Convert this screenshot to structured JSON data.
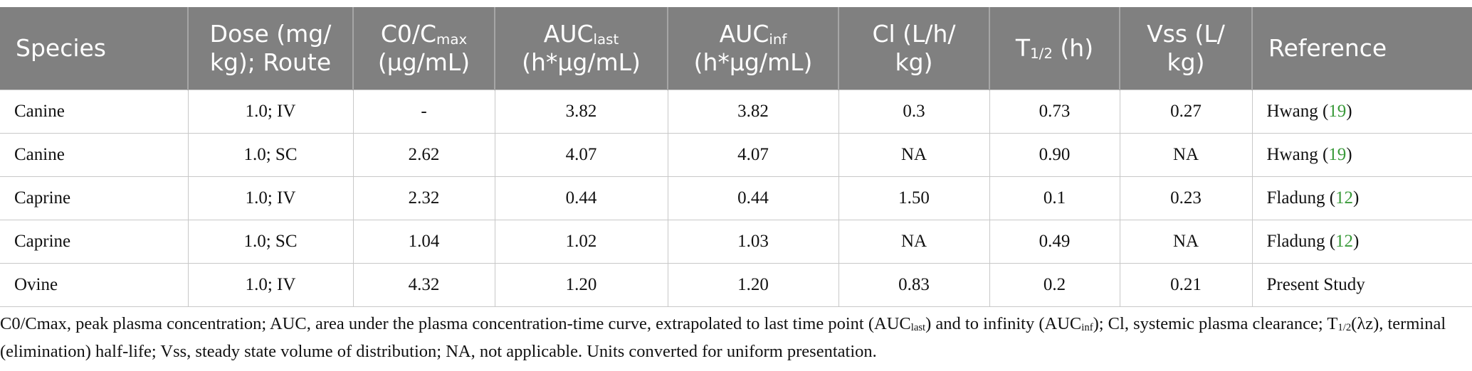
{
  "table": {
    "header": [
      [
        {
          "text": "Species"
        }
      ],
      [
        {
          "text": "Dose (mg/ kg); Route"
        }
      ],
      [
        {
          "text": "C0/C"
        },
        {
          "sub": "max"
        },
        {
          "text": " (μg/mL)"
        }
      ],
      [
        {
          "text": "AUC"
        },
        {
          "sub": "last"
        },
        {
          "text": " (h*μg/mL)"
        }
      ],
      [
        {
          "text": "AUC"
        },
        {
          "sub": "inf"
        },
        {
          "text": " (h*μg/mL)"
        }
      ],
      [
        {
          "text": "Cl (L/h/ kg)"
        }
      ],
      [
        {
          "text": "T"
        },
        {
          "sub": "1/2"
        },
        {
          "text": " (h)"
        }
      ],
      [
        {
          "text": "Vss (L/ kg)"
        }
      ],
      [
        {
          "text": "Reference"
        }
      ]
    ],
    "rows": [
      [
        "Canine",
        "1.0; IV",
        "-",
        "3.82",
        "3.82",
        "0.3",
        "0.73",
        "0.27",
        [
          {
            "text": "Hwang ("
          },
          {
            "ref": "19"
          },
          {
            "text": ")"
          }
        ]
      ],
      [
        "Canine",
        "1.0; SC",
        "2.62",
        "4.07",
        "4.07",
        "NA",
        "0.90",
        "NA",
        [
          {
            "text": "Hwang ("
          },
          {
            "ref": "19"
          },
          {
            "text": ")"
          }
        ]
      ],
      [
        "Caprine",
        "1.0; IV",
        "2.32",
        "0.44",
        "0.44",
        "1.50",
        "0.1",
        "0.23",
        [
          {
            "text": "Fladung ("
          },
          {
            "ref": "12"
          },
          {
            "text": ")"
          }
        ]
      ],
      [
        "Caprine",
        "1.0; SC",
        "1.04",
        "1.02",
        "1.03",
        "NA",
        "0.49",
        "NA",
        [
          {
            "text": "Fladung ("
          },
          {
            "ref": "12"
          },
          {
            "text": ")"
          }
        ]
      ],
      [
        "Ovine",
        "1.0; IV",
        "4.32",
        "1.20",
        "1.20",
        "0.83",
        "0.2",
        "0.21",
        [
          {
            "text": "Present Study"
          }
        ]
      ]
    ]
  },
  "footnote": [
    {
      "text": "C0/Cmax, peak plasma concentration; AUC, area under the plasma concentration-time curve, extrapolated to last time point (AUC"
    },
    {
      "sub": "last"
    },
    {
      "text": ") and to infinity (AUC"
    },
    {
      "sub": "inf"
    },
    {
      "text": "); Cl, systemic plasma clearance; T"
    },
    {
      "sub": "1/2"
    },
    {
      "text": "(λz), terminal (elimination) half-life; Vss, steady state volume of distribution; NA, not applicable. Units converted for uniform presentation."
    }
  ]
}
